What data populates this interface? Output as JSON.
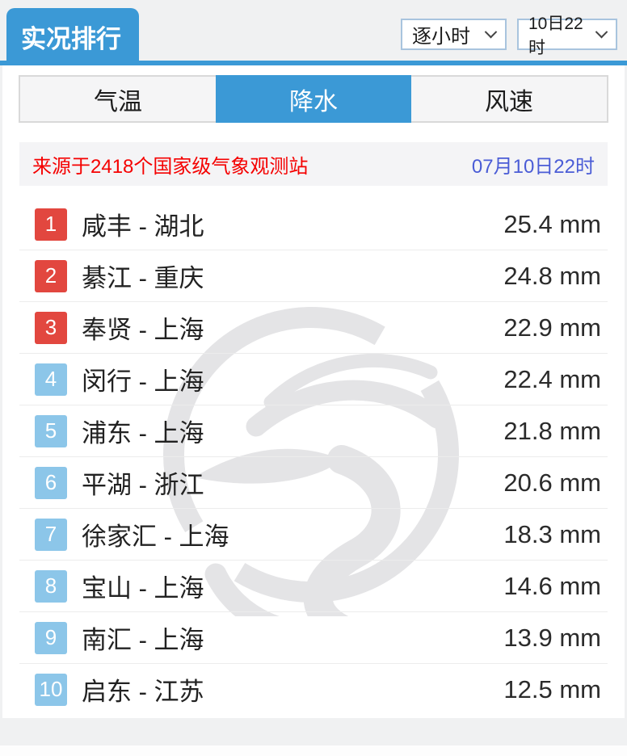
{
  "colors": {
    "accent": "#3b99d6",
    "badge_red": "#e2473f",
    "badge_blue": "#8cc6e9",
    "source_text": "#f50000",
    "timestamp_text": "#4a5cd6",
    "watermark": "#e4e4e6",
    "page_bg": "#f0f1f2"
  },
  "header": {
    "title": "实况排行",
    "interval_dropdown": {
      "value": "逐小时"
    },
    "time_dropdown": {
      "value": "10日22时"
    }
  },
  "tabs": [
    {
      "key": "temperature",
      "label": "气温",
      "active": false
    },
    {
      "key": "precipitation",
      "label": "降水",
      "active": true
    },
    {
      "key": "wind",
      "label": "风速",
      "active": false
    }
  ],
  "source_bar": {
    "source": "来源于2418个国家级气象观测站",
    "timestamp": "07月10日22时"
  },
  "ranking": [
    {
      "rank": "1",
      "station": "咸丰 - 湖北",
      "value": "25.4 mm"
    },
    {
      "rank": "2",
      "station": "綦江 - 重庆",
      "value": "24.8 mm"
    },
    {
      "rank": "3",
      "station": "奉贤 - 上海",
      "value": "22.9 mm"
    },
    {
      "rank": "4",
      "station": "闵行 - 上海",
      "value": "22.4 mm"
    },
    {
      "rank": "5",
      "station": "浦东 - 上海",
      "value": "21.8 mm"
    },
    {
      "rank": "6",
      "station": "平湖 - 浙江",
      "value": "20.6 mm"
    },
    {
      "rank": "7",
      "station": "徐家汇 - 上海",
      "value": "18.3 mm"
    },
    {
      "rank": "8",
      "station": "宝山 - 上海",
      "value": "14.6 mm"
    },
    {
      "rank": "9",
      "station": "南汇 - 上海",
      "value": "13.9 mm"
    },
    {
      "rank": "10",
      "station": "启东 - 江苏",
      "value": "12.5 mm"
    }
  ],
  "watermark": {
    "name": "weather-china-dragon-logo"
  }
}
